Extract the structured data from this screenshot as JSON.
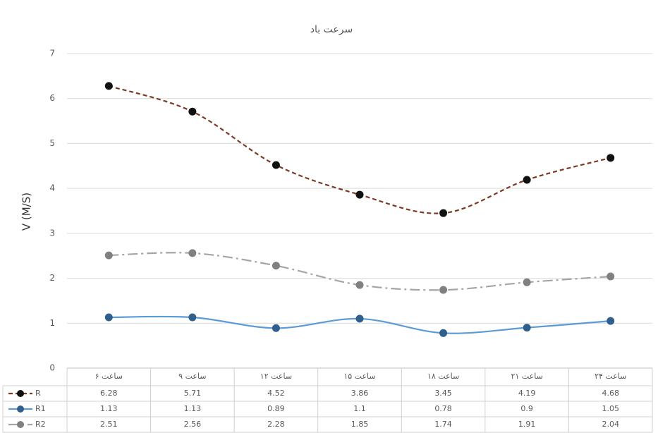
{
  "chart_data": {
    "type": "line",
    "title": "سرعت باد",
    "y_label": "V (M/S)",
    "categories": [
      "ساعت ۶",
      "ساعت ۹",
      "ساعت ۱۲",
      "ساعت ۱۵",
      "ساعت ۱۸",
      "ساعت ۲۱",
      "ساعت ۲۴"
    ],
    "series": [
      {
        "name": "R",
        "color": "#7a3b25",
        "marker_color": "#111111",
        "values": [
          6.28,
          5.71,
          4.52,
          3.86,
          3.45,
          4.19,
          4.68
        ]
      },
      {
        "name": "R1",
        "color": "#5b9bd5",
        "marker_color": "#2f5f8c",
        "values": [
          1.13,
          1.13,
          0.89,
          1.1,
          0.78,
          0.9,
          1.05
        ]
      },
      {
        "name": "R2",
        "color": "#a5a5a5",
        "marker_color": "#808080",
        "values": [
          2.51,
          2.56,
          2.28,
          1.85,
          1.74,
          1.91,
          2.04
        ]
      }
    ],
    "ylim": [
      0,
      7
    ],
    "yticks": [
      0,
      1,
      2,
      3,
      4,
      5,
      6,
      7
    ],
    "grid": true,
    "data_table": true
  }
}
